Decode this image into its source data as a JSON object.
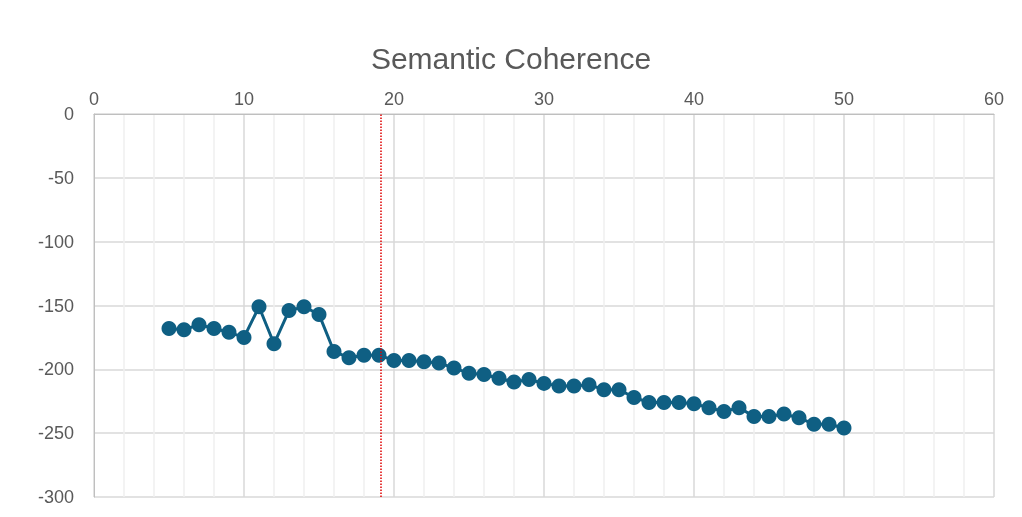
{
  "chart_data": {
    "type": "line",
    "title": "Semantic Coherence",
    "x": [
      5,
      6,
      7,
      8,
      9,
      10,
      11,
      12,
      13,
      14,
      15,
      16,
      17,
      18,
      19,
      20,
      21,
      22,
      23,
      24,
      25,
      26,
      27,
      28,
      29,
      30,
      31,
      32,
      33,
      34,
      35,
      36,
      37,
      38,
      39,
      40,
      41,
      42,
      43,
      44,
      45,
      46,
      47,
      48,
      49,
      50
    ],
    "series": [
      {
        "color": "#0f5f83",
        "values": [
          -168,
          -169,
          -165,
          -168,
          -171,
          -175,
          -151,
          -180,
          -154,
          -151,
          -157,
          -186,
          -191,
          -189,
          -189,
          -193,
          -193,
          -194,
          -195,
          -199,
          -203,
          -204,
          -207,
          -210,
          -208,
          -211,
          -213,
          -213,
          -212,
          -216,
          -216,
          -222,
          -226,
          -226,
          -226,
          -227,
          -230,
          -233,
          -230,
          -237,
          -237,
          -235,
          -238,
          -243,
          -243,
          -246
        ]
      }
    ],
    "xlim": [
      0,
      60
    ],
    "xticks": [
      0,
      10,
      20,
      30,
      40,
      50,
      60
    ],
    "ylim": [
      -300,
      0
    ],
    "yticks": [
      -300,
      -250,
      -200,
      -150,
      -100,
      -50,
      0
    ],
    "ref_lines": [
      {
        "axis": "x",
        "value": 19.1,
        "color": "#e00000",
        "line_style": "dotted"
      }
    ],
    "grid": true,
    "marker": "circle",
    "line_style": "solid"
  }
}
